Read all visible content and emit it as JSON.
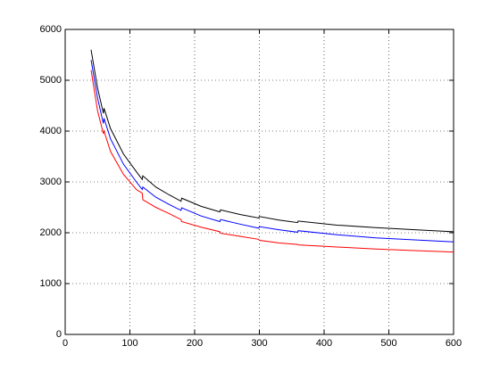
{
  "chart_data": {
    "type": "line",
    "x": [
      40,
      50,
      59,
      60,
      70,
      90,
      110,
      119,
      120,
      140,
      160,
      179,
      180,
      210,
      239,
      240,
      270,
      299,
      300,
      330,
      359,
      360,
      420,
      480,
      540,
      600
    ],
    "series": [
      {
        "color": "#000000",
        "values": [
          5600,
          4850,
          4350,
          4450,
          4050,
          3550,
          3200,
          3050,
          3120,
          2900,
          2750,
          2620,
          2680,
          2520,
          2410,
          2450,
          2360,
          2290,
          2320,
          2250,
          2200,
          2230,
          2150,
          2100,
          2060,
          2020
        ]
      },
      {
        "color": "#0000ff",
        "values": [
          5400,
          4650,
          4150,
          4250,
          3850,
          3350,
          3000,
          2850,
          2900,
          2700,
          2560,
          2440,
          2490,
          2330,
          2220,
          2260,
          2170,
          2090,
          2120,
          2060,
          2010,
          2040,
          1960,
          1900,
          1860,
          1820
        ]
      },
      {
        "color": "#ff0000",
        "values": [
          5200,
          4400,
          3950,
          4000,
          3600,
          3150,
          2850,
          2780,
          2650,
          2500,
          2380,
          2260,
          2220,
          2110,
          2020,
          1990,
          1930,
          1870,
          1850,
          1800,
          1770,
          1760,
          1720,
          1680,
          1650,
          1620
        ]
      }
    ],
    "xlim": [
      0,
      600
    ],
    "xticks": [
      0,
      100,
      200,
      300,
      400,
      500,
      600
    ],
    "ylim": [
      0,
      6000
    ],
    "yticks": [
      0,
      1000,
      2000,
      3000,
      4000,
      5000,
      6000
    ],
    "grid": true
  }
}
